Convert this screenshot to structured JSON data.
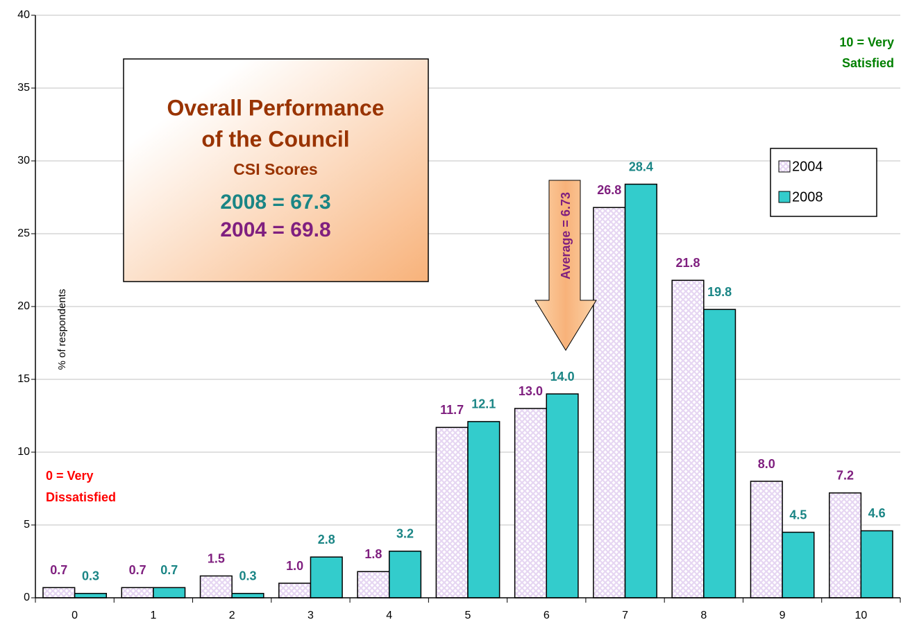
{
  "chart_data": {
    "type": "bar",
    "title_lines": [
      "Overall Performance",
      "of the Council"
    ],
    "subtitle": "CSI Scores",
    "score_lines": [
      "2008 = 67.3",
      "2004 = 69.8"
    ],
    "average_note": "Average = 6.73",
    "high_note": [
      "10 = Very",
      "Satisfied"
    ],
    "low_note": [
      "0 = Very",
      "Dissatisfied"
    ],
    "y_label": "% of respondents",
    "categories": [
      "0",
      "1",
      "2",
      "3",
      "4",
      "5",
      "6",
      "7",
      "8",
      "9",
      "10"
    ],
    "series": [
      {
        "name": "2004",
        "color": "#e6d6f2",
        "label_color": "#7f1f7f",
        "values": [
          0.7,
          0.7,
          1.5,
          1.0,
          1.8,
          11.7,
          13.0,
          26.8,
          21.8,
          8.0,
          7.2
        ],
        "value_labels": [
          "0.7",
          "0.7",
          "1.5",
          "1.0",
          "1.8",
          "11.7",
          "13.0",
          "26.8",
          "21.8",
          "8.0",
          "7.2"
        ]
      },
      {
        "name": "2008",
        "color": "#33cccc",
        "label_color": "#1a8585",
        "values": [
          0.3,
          0.7,
          0.3,
          2.8,
          3.2,
          12.1,
          14.0,
          28.4,
          19.8,
          4.5,
          4.6
        ],
        "value_labels": [
          "0.3",
          "0.7",
          "0.3",
          "2.8",
          "3.2",
          "12.1",
          "14.0",
          "28.4",
          "19.8",
          "4.5",
          "4.6"
        ]
      }
    ],
    "ylim": [
      0,
      40
    ],
    "yticks": [
      0,
      5,
      10,
      15,
      20,
      25,
      30,
      35,
      40
    ],
    "grid": true,
    "legend": "right"
  }
}
